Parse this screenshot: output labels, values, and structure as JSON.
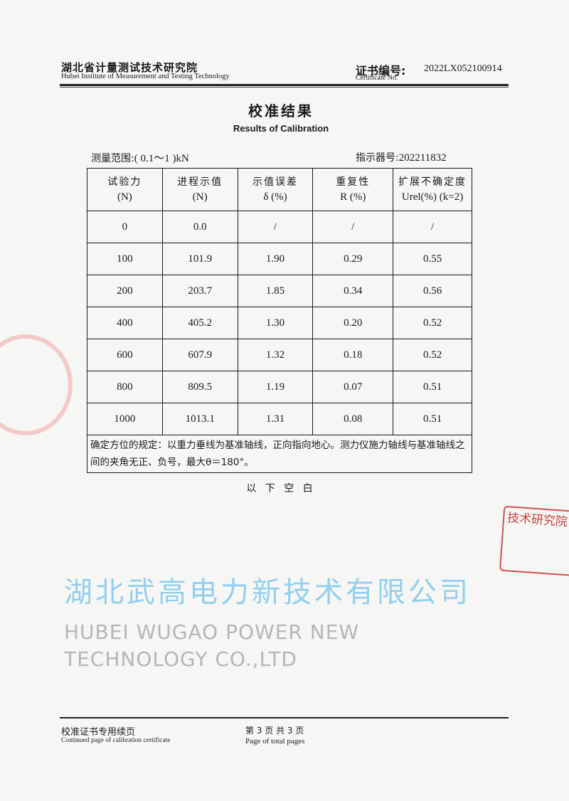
{
  "header": {
    "institute_cn": "湖北省计量测试技术研究院",
    "institute_en": "Hubei Institute of Measurement and Testing Technology",
    "certificate_label_cn": "证书编号:",
    "certificate_label_en": "Certificate No.",
    "certificate_no": "2022LX052100914"
  },
  "title": {
    "cn": "校准结果",
    "en": "Results of Calibration"
  },
  "meta": {
    "range_label": "测量范围:",
    "range_value": "( 0.1～1 )kN",
    "indicator_label": "指示器号:",
    "indicator_value": "202211832"
  },
  "table": {
    "headers": [
      {
        "line1": "试验力",
        "line2": "(N)"
      },
      {
        "line1": "进程示值",
        "line2": "(N)"
      },
      {
        "line1": "示值误差",
        "line2": "δ (%)"
      },
      {
        "line1": "重复性",
        "line2": "R (%)"
      },
      {
        "line1": "扩展不确定度",
        "line2": "Urel(%) (k=2)"
      }
    ],
    "rows": [
      [
        "0",
        "0.0",
        "/",
        "/",
        "/"
      ],
      [
        "100",
        "101.9",
        "1.90",
        "0.29",
        "0.55"
      ],
      [
        "200",
        "203.7",
        "1.85",
        "0.34",
        "0.56"
      ],
      [
        "400",
        "405.2",
        "1.30",
        "0.20",
        "0.52"
      ],
      [
        "600",
        "607.9",
        "1.32",
        "0.18",
        "0.52"
      ],
      [
        "800",
        "809.5",
        "1.19",
        "0.07",
        "0.51"
      ],
      [
        "1000",
        "1013.1",
        "1.31",
        "0.08",
        "0.51"
      ]
    ],
    "note": "确定方位的规定：以重力垂线为基准轴线，正向指向地心。测力仪施力轴线与基准轴线之间的夹角无正、负号，最大θ＝180°。"
  },
  "blank_notice": "以 下 空 白",
  "footer": {
    "label_cn": "校准证书专用续页",
    "label_en": "Continued page of calibration certificate",
    "page_cn": "第 3 页 共 3 页",
    "page_en": "Page of total pages"
  },
  "watermark": {
    "cn": "湖北武高电力新技术有限公司",
    "en": "HUBEI WUGAO POWER NEW TECHNOLOGY CO.,LTD",
    "color_cn": "#46afeb"
  },
  "stamp": {
    "text": "技术研究院 章",
    "color": "#c81e1e"
  }
}
